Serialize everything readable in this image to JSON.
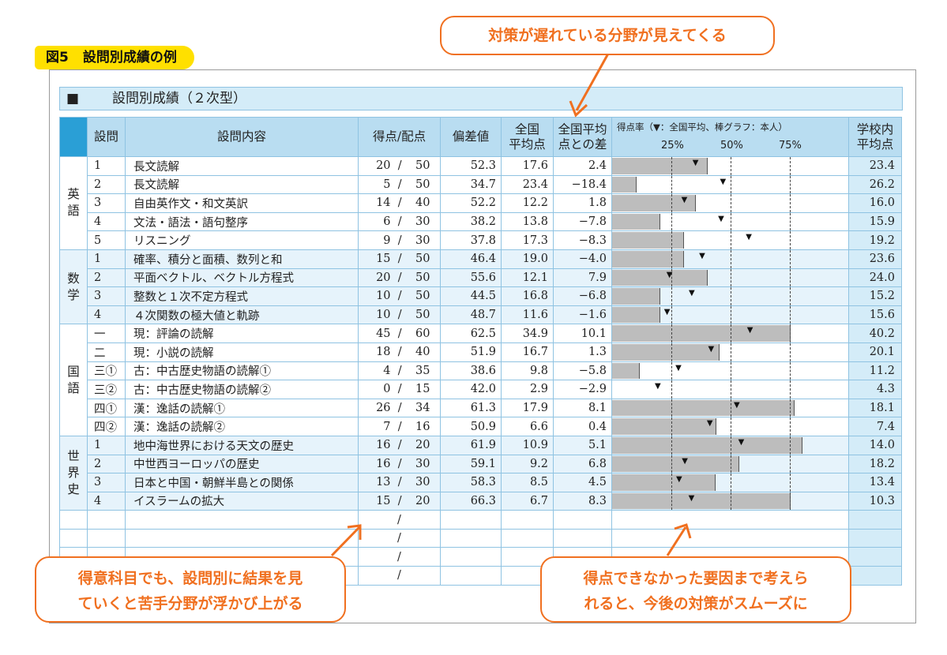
{
  "figure": {
    "number": "図5",
    "title": "設問別成績の例"
  },
  "sheet": {
    "square": "■",
    "title": "設問別成績（２次型）"
  },
  "headers": {
    "qno": "設問",
    "content": "設問内容",
    "score": "得点/配点",
    "dev": "偏差値",
    "avg_line1": "全国",
    "avg_line2": "平均点",
    "diff_line1": "全国平均",
    "diff_line2": "点との差",
    "rate_title": "得点率（▼：全国平均、棒グラフ：本人）",
    "ticks": [
      "25%",
      "50%",
      "75%"
    ],
    "school_line1": "学校内",
    "school_line2": "平均点"
  },
  "subjects": [
    {
      "name": "英語",
      "rows": [
        {
          "q": "1",
          "content": "長文読解",
          "score": "20",
          "max": "50",
          "dev": "52.3",
          "avg": "17.6",
          "diff": "2.4",
          "school": "23.4",
          "rate": 0.4,
          "avg_rate": 0.352
        },
        {
          "q": "2",
          "content": "長文読解",
          "score": "5",
          "max": "50",
          "dev": "34.7",
          "avg": "23.4",
          "diff": "−18.4",
          "school": "26.2",
          "rate": 0.1,
          "avg_rate": 0.468
        },
        {
          "q": "3",
          "content": "自由英作文・和文英訳",
          "score": "14",
          "max": "40",
          "dev": "52.2",
          "avg": "12.2",
          "diff": "1.8",
          "school": "16.0",
          "rate": 0.35,
          "avg_rate": 0.305
        },
        {
          "q": "4",
          "content": "文法・語法・語句整序",
          "score": "6",
          "max": "30",
          "dev": "38.2",
          "avg": "13.8",
          "diff": "−7.8",
          "school": "15.9",
          "rate": 0.2,
          "avg_rate": 0.46
        },
        {
          "q": "5",
          "content": "リスニング",
          "score": "9",
          "max": "30",
          "dev": "37.8",
          "avg": "17.3",
          "diff": "−8.3",
          "school": "19.2",
          "rate": 0.3,
          "avg_rate": 0.577
        }
      ]
    },
    {
      "name": "数学",
      "rows": [
        {
          "q": "1",
          "content": "確率、積分と面積、数列と和",
          "score": "15",
          "max": "50",
          "dev": "46.4",
          "avg": "19.0",
          "diff": "−4.0",
          "school": "23.6",
          "rate": 0.3,
          "avg_rate": 0.38
        },
        {
          "q": "2",
          "content": "平面ベクトル、ベクトル方程式",
          "score": "20",
          "max": "50",
          "dev": "55.6",
          "avg": "12.1",
          "diff": "7.9",
          "school": "24.0",
          "rate": 0.4,
          "avg_rate": 0.242
        },
        {
          "q": "3",
          "content": "整数と１次不定方程式",
          "score": "10",
          "max": "50",
          "dev": "44.5",
          "avg": "16.8",
          "diff": "−6.8",
          "school": "15.2",
          "rate": 0.2,
          "avg_rate": 0.336
        },
        {
          "q": "4",
          "content": "４次関数の極大値と軌跡",
          "score": "10",
          "max": "50",
          "dev": "48.7",
          "avg": "11.6",
          "diff": "−1.6",
          "school": "15.6",
          "rate": 0.2,
          "avg_rate": 0.232
        }
      ]
    },
    {
      "name": "国語",
      "rows": [
        {
          "q": "一",
          "content": "現：評論の読解",
          "score": "45",
          "max": "60",
          "dev": "62.5",
          "avg": "34.9",
          "diff": "10.1",
          "school": "40.2",
          "rate": 0.75,
          "avg_rate": 0.582
        },
        {
          "q": "二",
          "content": "現：小説の読解",
          "score": "18",
          "max": "40",
          "dev": "51.9",
          "avg": "16.7",
          "diff": "1.3",
          "school": "20.1",
          "rate": 0.45,
          "avg_rate": 0.418
        },
        {
          "q": "三①",
          "content": "古：中古歴史物語の読解①",
          "score": "4",
          "max": "35",
          "dev": "38.6",
          "avg": "9.8",
          "diff": "−5.8",
          "school": "11.2",
          "rate": 0.114,
          "avg_rate": 0.28
        },
        {
          "q": "三②",
          "content": "古：中古歴史物語の読解②",
          "score": "0",
          "max": "15",
          "dev": "42.0",
          "avg": "2.9",
          "diff": "−2.9",
          "school": "4.3",
          "rate": 0.0,
          "avg_rate": 0.193
        },
        {
          "q": "四①",
          "content": "漢：逸話の読解①",
          "score": "26",
          "max": "34",
          "dev": "61.3",
          "avg": "17.9",
          "diff": "8.1",
          "school": "18.1",
          "rate": 0.765,
          "avg_rate": 0.526
        },
        {
          "q": "四②",
          "content": "漢：逸話の読解②",
          "score": "7",
          "max": "16",
          "dev": "50.9",
          "avg": "6.6",
          "diff": "0.4",
          "school": "7.4",
          "rate": 0.4375,
          "avg_rate": 0.4125
        }
      ]
    },
    {
      "name": "世界史",
      "rows": [
        {
          "q": "1",
          "content": "地中海世界における天文の歴史",
          "score": "16",
          "max": "20",
          "dev": "61.9",
          "avg": "10.9",
          "diff": "5.1",
          "school": "14.0",
          "rate": 0.8,
          "avg_rate": 0.545
        },
        {
          "q": "2",
          "content": "中世西ヨーロッパの歴史",
          "score": "16",
          "max": "30",
          "dev": "59.1",
          "avg": "9.2",
          "diff": "6.8",
          "school": "18.2",
          "rate": 0.533,
          "avg_rate": 0.307
        },
        {
          "q": "3",
          "content": "日本と中国・朝鮮半島との関係",
          "score": "13",
          "max": "30",
          "dev": "58.3",
          "avg": "8.5",
          "diff": "4.5",
          "school": "13.4",
          "rate": 0.433,
          "avg_rate": 0.283
        },
        {
          "q": "4",
          "content": "イスラームの拡大",
          "score": "15",
          "max": "20",
          "dev": "66.3",
          "avg": "6.7",
          "diff": "8.3",
          "school": "10.3",
          "rate": 0.75,
          "avg_rate": 0.335
        }
      ]
    }
  ],
  "callouts": {
    "top": "対策が遅れている分野が見えてくる",
    "left_line1": "得意科目でも、設問別に結果を見",
    "left_line2": "ていくと苦手分野が浮かび上がる",
    "right_line1": "得点できなかった要因まで考えら",
    "right_line2": "れると、今後の対策がスムーズに"
  }
}
